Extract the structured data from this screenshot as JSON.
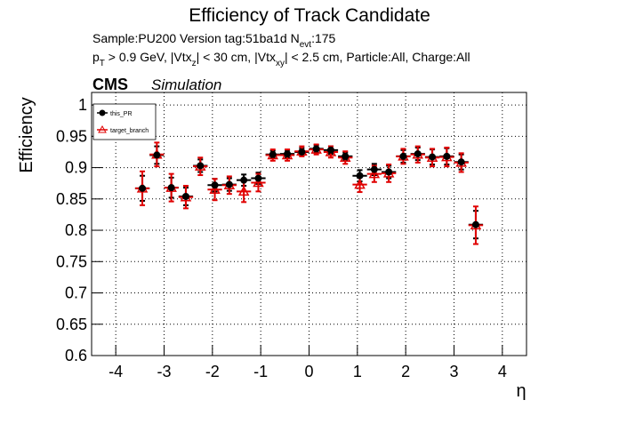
{
  "chart_data": {
    "type": "errorbar",
    "title": "Efficiency of Track Candidate",
    "info_lines": [
      [
        {
          "text": "Sample:PU200   Version tag:51ba1d  N",
          "sub": false
        },
        {
          "text": "evt",
          "sub": true
        },
        {
          "text": ":175",
          "sub": false
        }
      ],
      [
        {
          "text": "p",
          "sub": false
        },
        {
          "text": "T",
          "sub": true
        },
        {
          "text": " > 0.9 GeV, |Vtx",
          "sub": false
        },
        {
          "text": "z",
          "sub": true
        },
        {
          "text": "| < 30 cm, |Vtx",
          "sub": false
        },
        {
          "text": "xy",
          "sub": true
        },
        {
          "text": "| < 2.5 cm, Particle:All, Charge:All",
          "sub": false
        }
      ]
    ],
    "experiment": "CMS",
    "status": "Simulation",
    "x_label": "η",
    "y_label": "Efficiency",
    "x": [
      -3.45,
      -3.15,
      -2.85,
      -2.55,
      -2.25,
      -1.95,
      -1.65,
      -1.35,
      -1.05,
      -0.75,
      -0.45,
      -0.15,
      0.15,
      0.45,
      0.75,
      1.05,
      1.35,
      1.65,
      1.95,
      2.25,
      2.55,
      2.85,
      3.15,
      3.45
    ],
    "xerr": 0.15,
    "series": [
      {
        "name": "this_PR",
        "color": "#000000",
        "marker": "circle",
        "values": [
          0.867,
          0.92,
          0.868,
          0.854,
          0.903,
          0.872,
          0.873,
          0.88,
          0.883,
          0.921,
          0.922,
          0.925,
          0.93,
          0.928,
          0.918,
          0.887,
          0.897,
          0.893,
          0.918,
          0.922,
          0.917,
          0.918,
          0.909,
          0.809
        ],
        "errors": [
          0.02,
          0.014,
          0.016,
          0.014,
          0.01,
          0.01,
          0.01,
          0.009,
          0.009,
          0.006,
          0.006,
          0.006,
          0.006,
          0.006,
          0.006,
          0.009,
          0.009,
          0.01,
          0.01,
          0.01,
          0.012,
          0.013,
          0.012,
          0.022
        ]
      },
      {
        "name": "target_branch",
        "color": "#e00000",
        "marker": "open-triangle",
        "values": [
          0.867,
          0.921,
          0.868,
          0.853,
          0.902,
          0.865,
          0.872,
          0.862,
          0.876,
          0.92,
          0.92,
          0.926,
          0.929,
          0.925,
          0.916,
          0.873,
          0.89,
          0.891,
          0.918,
          0.921,
          0.916,
          0.917,
          0.908,
          0.808
        ],
        "errors": [
          0.027,
          0.019,
          0.022,
          0.018,
          0.014,
          0.017,
          0.014,
          0.017,
          0.014,
          0.009,
          0.009,
          0.008,
          0.008,
          0.009,
          0.01,
          0.012,
          0.013,
          0.014,
          0.012,
          0.013,
          0.014,
          0.015,
          0.015,
          0.03
        ]
      }
    ],
    "xlim": [
      -4.5,
      4.5
    ],
    "xticks": [
      -4,
      -3,
      -2,
      -1,
      0,
      1,
      2,
      3,
      4
    ],
    "ylim": [
      0.6,
      1.02
    ],
    "yticks": [
      0.6,
      0.65,
      0.7,
      0.75,
      0.8,
      0.85,
      0.9,
      0.95,
      1
    ],
    "grid": true,
    "legend": "upper left"
  }
}
